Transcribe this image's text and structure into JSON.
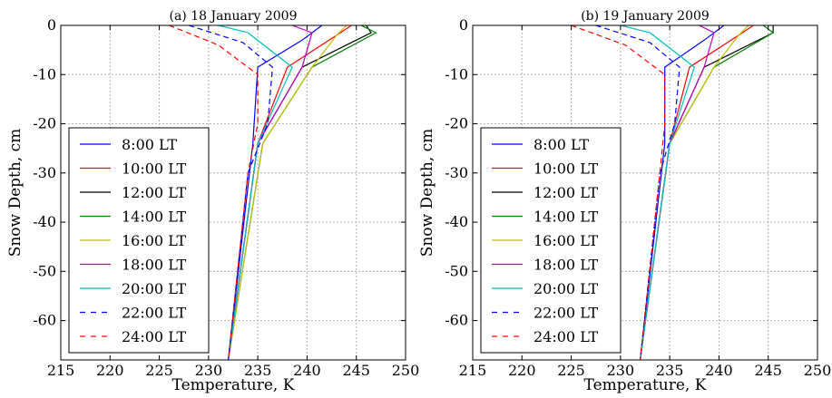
{
  "chart_data": [
    {
      "type": "line",
      "title": "(a) 18 January 2009",
      "xlabel": "Temperature, K",
      "ylabel": "Snow Depth, cm",
      "xlim": [
        215,
        250
      ],
      "ylim": [
        -68,
        0
      ],
      "xticks": [
        "215",
        "220",
        "225",
        "230",
        "235",
        "240",
        "245",
        "250"
      ],
      "yticks": [
        "0",
        "-10",
        "-20",
        "-30",
        "-40",
        "-50",
        "-60"
      ],
      "grid": true,
      "legend_position": "lower-left",
      "series": [
        {
          "name": "8:00 LT",
          "color": "#0000ff",
          "dash": false,
          "x": [
            241.5,
            239.5,
            235.0,
            234.5,
            232.0
          ],
          "y": [
            0,
            -3,
            -8.5,
            -24,
            -68
          ]
        },
        {
          "name": "10:00 LT",
          "color": "#ff0000",
          "dash": false,
          "x": [
            244.5,
            243.0,
            238.0,
            235.0,
            232.0
          ],
          "y": [
            0,
            -2,
            -8.5,
            -24,
            -68
          ]
        },
        {
          "name": "12:00 LT",
          "color": "#000000",
          "dash": false,
          "x": [
            246.0,
            246.5,
            239.5,
            235.0,
            232.0
          ],
          "y": [
            0,
            -1.5,
            -8.5,
            -24,
            -68
          ]
        },
        {
          "name": "14:00 LT",
          "color": "#008000",
          "dash": false,
          "x": [
            245.5,
            247.0,
            240.5,
            235.5,
            232.0
          ],
          "y": [
            0,
            -1.5,
            -8.5,
            -24,
            -68
          ]
        },
        {
          "name": "16:00 LT",
          "color": "#bfbf00",
          "dash": false,
          "x": [
            244.0,
            243.0,
            240.5,
            235.5,
            232.0
          ],
          "y": [
            0,
            -2,
            -8.5,
            -24,
            -68
          ]
        },
        {
          "name": "18:00 LT",
          "color": "#bf00bf",
          "dash": false,
          "x": [
            238.5,
            240.5,
            239.5,
            235.0,
            232.0
          ],
          "y": [
            0,
            -1.5,
            -8.5,
            -24,
            -68
          ]
        },
        {
          "name": "20:00 LT",
          "color": "#00bfbf",
          "dash": false,
          "x": [
            231.0,
            234.0,
            238.5,
            235.0,
            232.0
          ],
          "y": [
            0,
            -1.5,
            -8.5,
            -24,
            -68
          ]
        },
        {
          "name": "22:00 LT",
          "color": "#0000ff",
          "dash": true,
          "x": [
            228.0,
            233.5,
            236.5,
            236.0,
            234.0,
            232.0
          ],
          "y": [
            0,
            -3.5,
            -8.5,
            -20,
            -30,
            -68
          ]
        },
        {
          "name": "24:00 LT",
          "color": "#ff0000",
          "dash": true,
          "x": [
            226.0,
            231.0,
            235.0,
            235.0,
            234.0,
            232.0
          ],
          "y": [
            0,
            -4,
            -10,
            -20,
            -30,
            -68
          ]
        }
      ]
    },
    {
      "type": "line",
      "title": "(b) 19 January 2009",
      "xlabel": "Temperature, K",
      "ylabel": "Snow Depth, cm",
      "xlim": [
        215,
        250
      ],
      "ylim": [
        -68,
        0
      ],
      "xticks": [
        "215",
        "220",
        "225",
        "230",
        "235",
        "240",
        "245",
        "250"
      ],
      "yticks": [
        "0",
        "-10",
        "-20",
        "-30",
        "-40",
        "-50",
        "-60"
      ],
      "grid": true,
      "legend_position": "lower-left",
      "series": [
        {
          "name": "8:00 LT",
          "color": "#0000ff",
          "dash": false,
          "x": [
            240.5,
            238.5,
            234.5,
            234.5,
            232.0
          ],
          "y": [
            0,
            -3,
            -8.5,
            -24,
            -68
          ]
        },
        {
          "name": "10:00 LT",
          "color": "#ff0000",
          "dash": false,
          "x": [
            243.5,
            242.0,
            237.0,
            235.0,
            232.0
          ],
          "y": [
            0,
            -2,
            -8.5,
            -24,
            -68
          ]
        },
        {
          "name": "12:00 LT",
          "color": "#000000",
          "dash": false,
          "x": [
            245.5,
            245.5,
            238.5,
            235.0,
            232.0
          ],
          "y": [
            0,
            -1.5,
            -8.5,
            -24,
            -68
          ]
        },
        {
          "name": "14:00 LT",
          "color": "#008000",
          "dash": false,
          "x": [
            244.5,
            245.5,
            239.5,
            235.0,
            232.0
          ],
          "y": [
            0,
            -1.5,
            -8.5,
            -24,
            -68
          ]
        },
        {
          "name": "16:00 LT",
          "color": "#bfbf00",
          "dash": false,
          "x": [
            243.0,
            242.0,
            239.5,
            235.0,
            232.0
          ],
          "y": [
            0,
            -2,
            -8.5,
            -24,
            -68
          ]
        },
        {
          "name": "18:00 LT",
          "color": "#bf00bf",
          "dash": false,
          "x": [
            238.0,
            239.5,
            238.5,
            235.0,
            232.0
          ],
          "y": [
            0,
            -1.5,
            -8.5,
            -24,
            -68
          ]
        },
        {
          "name": "20:00 LT",
          "color": "#00bfbf",
          "dash": false,
          "x": [
            230.0,
            233.0,
            237.5,
            235.0,
            232.0
          ],
          "y": [
            0,
            -1.5,
            -8.5,
            -24,
            -68
          ]
        },
        {
          "name": "22:00 LT",
          "color": "#0000ff",
          "dash": true,
          "x": [
            227.5,
            233.0,
            236.0,
            235.5,
            234.0,
            232.0
          ],
          "y": [
            0,
            -3.5,
            -8.5,
            -20,
            -30,
            -68
          ]
        },
        {
          "name": "24:00 LT",
          "color": "#ff0000",
          "dash": true,
          "x": [
            225.0,
            230.5,
            234.5,
            234.5,
            234.0,
            232.0
          ],
          "y": [
            0,
            -4,
            -10,
            -20,
            -30,
            -68
          ]
        }
      ]
    }
  ]
}
